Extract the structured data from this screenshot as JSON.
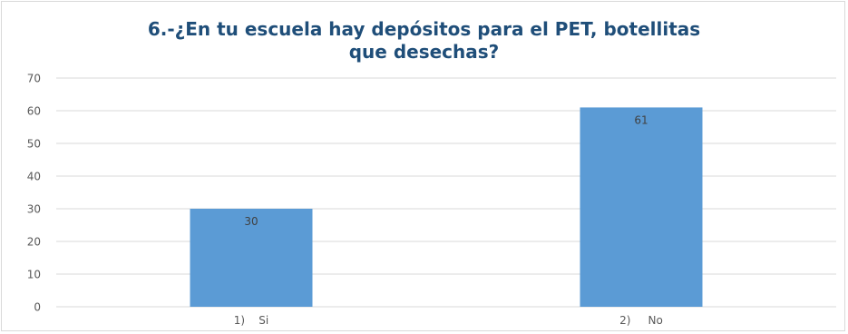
{
  "chart_data": {
    "type": "bar",
    "title_line1": "6.-¿En tu escuela hay depósitos para el PET, botellitas",
    "title_line2": "que desechas?",
    "categories": [
      "1)    Si",
      "2)     No"
    ],
    "values": [
      30,
      61
    ],
    "data_labels": [
      "30",
      "61"
    ],
    "ylim": [
      0,
      70
    ],
    "yticks": [
      "0",
      "10",
      "20",
      "30",
      "40",
      "50",
      "60",
      "70"
    ],
    "grid": true,
    "legend": "none",
    "bar_color": "#5b9bd5",
    "grid_color": "#d9d9d9",
    "title_color": "#1f4e79",
    "label_color": "#595959"
  }
}
